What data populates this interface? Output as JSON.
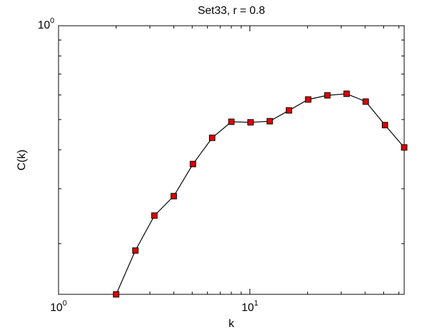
{
  "chart_data": {
    "type": "line",
    "title": "Set33, r = 0.8",
    "x_label": "k",
    "y_label": "C(k)",
    "log_x": true,
    "log_y": true,
    "xlim": [
      1,
      64
    ],
    "ylim": [
      0.1375,
      1
    ],
    "xticks": [
      {
        "value": 1,
        "label": "10^0"
      },
      {
        "value": 10,
        "label": "10^1"
      }
    ],
    "yticks": [
      {
        "value": 1,
        "label": "10^0"
      }
    ],
    "xminorticks": [
      2,
      3,
      4,
      5,
      6,
      7,
      8,
      9,
      20,
      30,
      40,
      50,
      60
    ],
    "yminorticks": [
      0.2,
      0.3,
      0.4,
      0.5,
      0.6,
      0.7,
      0.8,
      0.9
    ],
    "series": [
      {
        "color": "#000000",
        "marker_color": "#e00000",
        "x": [
          2,
          2.52,
          3.17,
          4,
          5.04,
          6.35,
          8,
          10.08,
          12.7,
          16,
          20.16,
          25.4,
          32,
          40.3,
          50.8,
          64
        ],
        "values": [
          0.1375,
          0.19,
          0.246,
          0.284,
          0.36,
          0.437,
          0.492,
          0.49,
          0.494,
          0.535,
          0.58,
          0.598,
          0.605,
          0.571,
          0.48,
          0.407
        ]
      }
    ]
  }
}
